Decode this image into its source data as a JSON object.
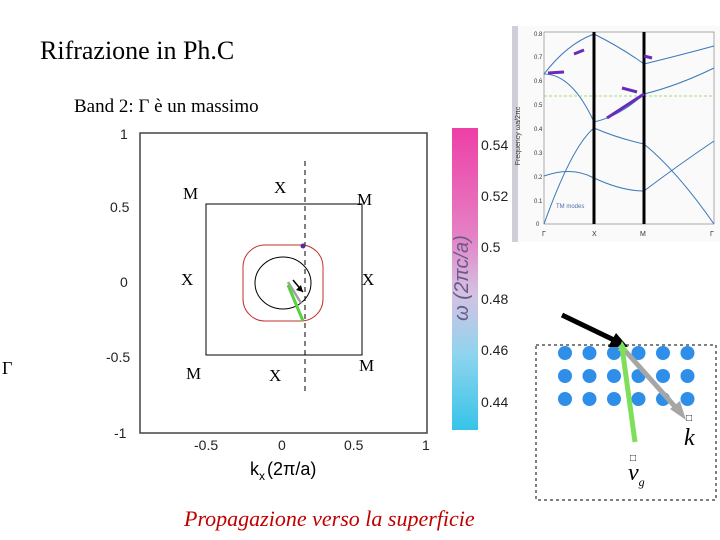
{
  "title": "Rifrazione in Ph.C",
  "subtitle": "Band 2: Γ è un massimo",
  "gamma_left": "Γ",
  "caption": "Propagazione verso la superficie",
  "contour_plot": {
    "y_ticks": [
      "1",
      "0.5",
      "0",
      "-0.5",
      "-1"
    ],
    "x_ticks": [
      "-0.5",
      "0",
      "0.5",
      "1"
    ],
    "x_axis_label": "k",
    "x_axis_sub": "x",
    "x_axis_unit": "(2π/a)",
    "points": {
      "m_tl": "M",
      "x_top": "X",
      "m_tr": "M",
      "x_left": "X",
      "x_right": "X",
      "m_bl": "M",
      "x_bottom": "X",
      "m_br": "M"
    }
  },
  "colorbar": {
    "ticks": [
      "0.54",
      "0.52",
      "0.5",
      "0.48",
      "0.46",
      "0.44"
    ],
    "label": "ω (2πc/a)",
    "colors": {
      "top": "#ee3fa6",
      "bottom": "#36c4e8"
    }
  },
  "band_diagram": {
    "ylabel": "Frequency ωa/2πc",
    "y_ticks": [
      "0.8",
      "0.7",
      "0.6",
      "0.5",
      "0.4",
      "0.3",
      "0.2",
      "0.1",
      "0"
    ],
    "x_ticks": [
      "Γ",
      "X",
      "M",
      "Γ"
    ],
    "legend": "TM modes"
  },
  "crystal_diagram": {
    "k_label": "k",
    "vg_label": "v",
    "vg_sub": "g",
    "colors": {
      "dots": "#2f8ee8",
      "incident": "#000000",
      "k": "#a6a6a6",
      "vg": "#7ee05a"
    }
  }
}
